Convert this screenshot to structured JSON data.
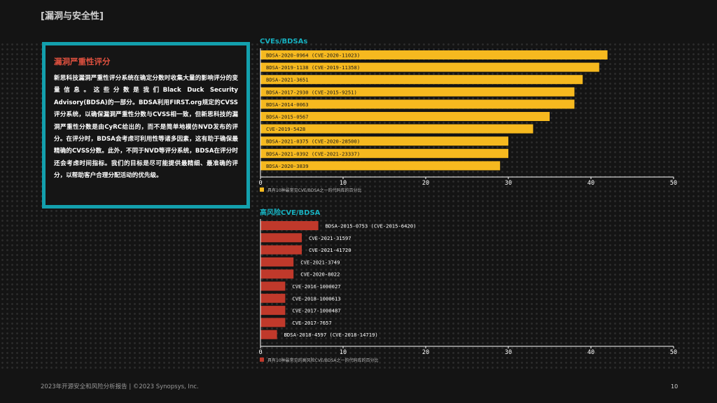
{
  "header": "[漏洞与安全性]",
  "box": {
    "title": "漏洞严重性评分",
    "body": "新思科技漏洞严重性评分系统在确定分数时收集大量的影响评分的变量信息。这些分数是我们Black Duck Security Advisory(BDSA)的一部分。BDSA利用FIRST.org规定的CVSS评分系统，以确保漏洞严重性分数与CVSS相一致，但新思科技的漏洞严重性分数是由CyRC给出的，而不是简单地模仿NVD发布的评分。在评分时，BDSA会考虑可利用性等诸多因素，这有助于确保最精确的CVSS分数。此外，不同于NVD等评分系统，BDSA在评分时还会考虑时间指标。我们的目标是尽可能提供最精细、最准确的评分，以帮助客户合理分配活动的优先级。"
  },
  "footer": "2023年开源安全和风险分析报告 | ©2023 Synopsys, Inc.",
  "page_number": "10",
  "colors": {
    "teal": "#13a0ad",
    "yellow": "#f6b91f",
    "red": "#c0392b"
  },
  "chart_data": [
    {
      "type": "bar",
      "orientation": "horizontal",
      "title": "CVEs/BDSAs",
      "categories": [
        "BDSA-2020-0964 (CVE-2020-11023)",
        "BDSA-2019-1138 (CVE-2019-11358)",
        "BDSA-2021-3651",
        "BDSA-2017-2930 (CVE-2015-9251)",
        "BDSA-2014-0063",
        "BDSA-2015-0567",
        "CVE-2019-5428",
        "BDSA-2021-0375 (CVE-2020-28500)",
        "BDSA-2021-0392 (CVE-2021-23337)",
        "BDSA-2020-3839"
      ],
      "values": [
        42,
        41,
        39,
        38,
        38,
        35,
        33,
        30,
        30,
        29
      ],
      "xlim": [
        0,
        50
      ],
      "xticks": [
        0,
        10,
        20,
        30,
        40,
        50
      ],
      "legend": "具有10种最常见CVE/BDSA之一的代码库的百分比",
      "color": "#f6b91f"
    },
    {
      "type": "bar",
      "orientation": "horizontal",
      "title": "高风险CVE/BDSA",
      "categories": [
        "BDSA-2015-0753 (CVE-2015-6420)",
        "CVE-2021-31597",
        "CVE-2021-41720",
        "CVE-2021-3749",
        "CVE-2020-8022",
        "CVE-2016-1000027",
        "CVE-2018-1000613",
        "CVE-2017-1000487",
        "CVE-2017-7657",
        "BDSA-2018-4597 (CVE-2018-14719)"
      ],
      "values": [
        7,
        5,
        5,
        4,
        4,
        3,
        3,
        3,
        3,
        2
      ],
      "xlim": [
        0,
        50
      ],
      "xticks": [
        0,
        10,
        20,
        30,
        40,
        50
      ],
      "legend": "具有10种最常见的高风险CVE/BDSA之一的代码库的百分比",
      "color": "#c0392b"
    }
  ]
}
